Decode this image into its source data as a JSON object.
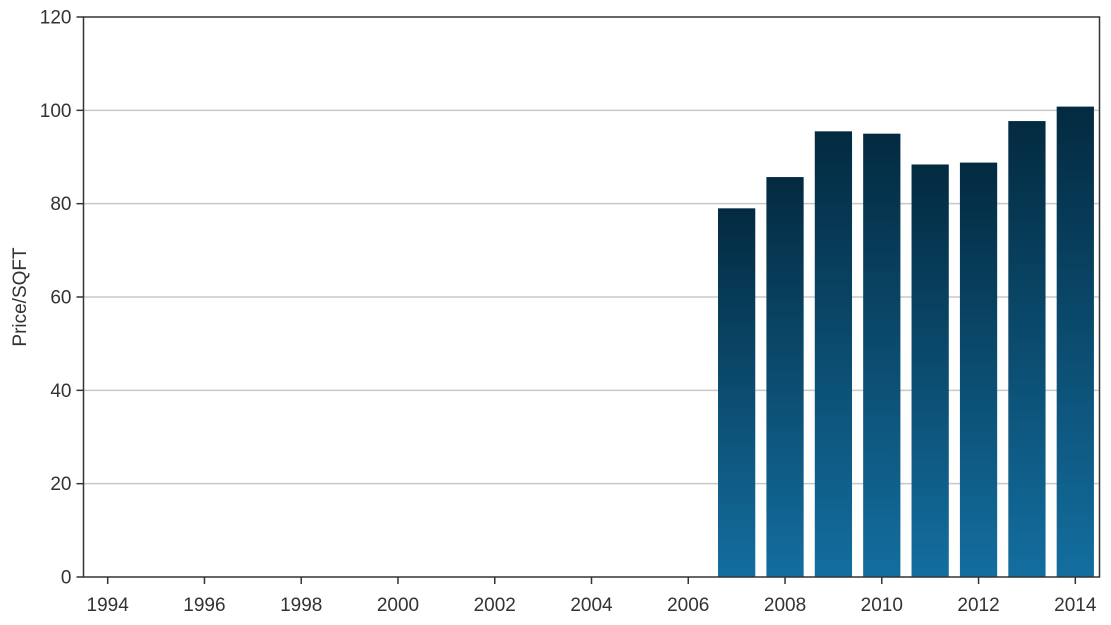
{
  "chart_data": {
    "type": "bar",
    "title": "",
    "xlabel": "",
    "ylabel": "Price/SQFT",
    "x": [
      2007,
      2008,
      2009,
      2010,
      2011,
      2012,
      2013,
      2014
    ],
    "values": [
      79,
      85.7,
      95.5,
      95,
      88.4,
      88.8,
      97.7,
      100.8
    ],
    "xlim": [
      1993.5,
      2014.5
    ],
    "ylim": [
      0,
      120
    ],
    "x_ticks": [
      "1994",
      "1996",
      "1998",
      "2000",
      "2002",
      "2004",
      "2006",
      "2008",
      "2010",
      "2012",
      "2014"
    ],
    "y_ticks": [
      "0",
      "20",
      "40",
      "60",
      "80",
      "100",
      "120"
    ],
    "grid": "horizontal",
    "bar_gradient": {
      "top": "#032a40",
      "bottom": "#136e9f"
    },
    "colors": {
      "axis": "#333333",
      "grid": "#c8c8c8"
    }
  }
}
